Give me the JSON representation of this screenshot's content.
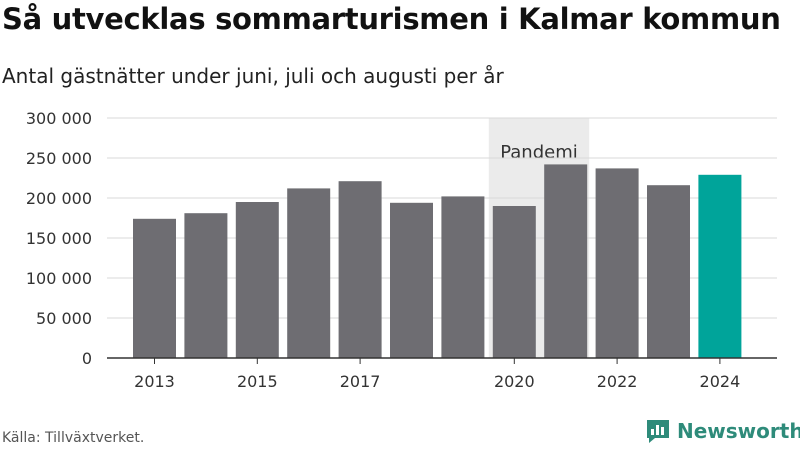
{
  "title": "Så utvecklas sommarturismen i Kalmar kommun",
  "subtitle": "Antal gästnätter under juni, juli och augusti per år",
  "source": "Källa: Tillväxtverket.",
  "brand": {
    "name": "Newsworthy",
    "icon": "bar-chart-logo-icon",
    "color": "#2e8b7a"
  },
  "chart_data": {
    "type": "bar",
    "x": [
      2013,
      2014,
      2015,
      2016,
      2017,
      2018,
      2019,
      2020,
      2021,
      2022,
      2023,
      2024
    ],
    "values": [
      174000,
      181000,
      195000,
      212000,
      221000,
      194000,
      202000,
      190000,
      242000,
      237000,
      216000,
      229000
    ],
    "x_tick_labels": [
      "2013",
      "2015",
      "2017",
      "2020",
      "2022",
      "2024"
    ],
    "y_tick_values": [
      0,
      50000,
      100000,
      150000,
      200000,
      250000,
      300000
    ],
    "y_tick_labels": [
      "0",
      "50 000",
      "100 000",
      "150 000",
      "200 000",
      "250 000",
      "300 000"
    ],
    "ylim": [
      0,
      300000
    ],
    "grid": true,
    "bar_color": "#6e6d72",
    "highlight_year": 2024,
    "highlight_color": "#00a49a",
    "annotation": {
      "label": "Pandemi",
      "from_year": 2020,
      "to_year": 2021,
      "color": "#ebebeb"
    }
  }
}
